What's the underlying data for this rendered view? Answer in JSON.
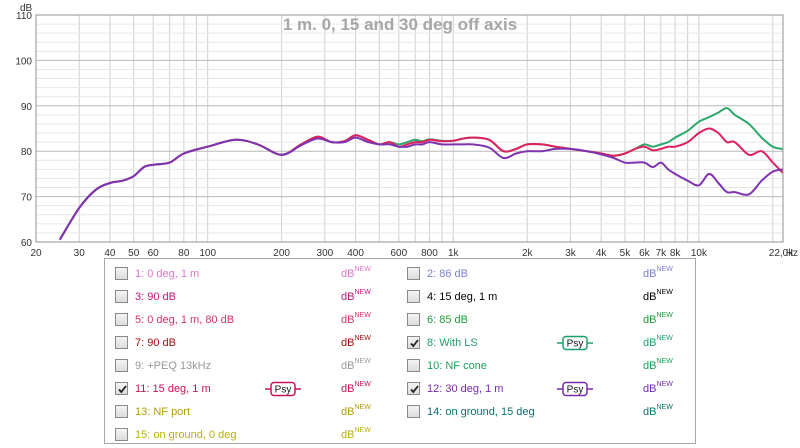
{
  "chart_data": {
    "type": "line",
    "title": "1 m. 0, 15 and 30 deg off axis",
    "xlabel": "Hz",
    "ylabel": "dB",
    "x_scale": "log",
    "xlim": [
      20,
      22000
    ],
    "ylim": [
      60,
      110
    ],
    "grid": true,
    "x_ticks": [
      {
        "v": 20,
        "t": "20"
      },
      {
        "v": 30,
        "t": "30"
      },
      {
        "v": 40,
        "t": "40"
      },
      {
        "v": 50,
        "t": "50"
      },
      {
        "v": 60,
        "t": "60"
      },
      {
        "v": 80,
        "t": "80"
      },
      {
        "v": 100,
        "t": "100"
      },
      {
        "v": 200,
        "t": "200"
      },
      {
        "v": 300,
        "t": "300"
      },
      {
        "v": 400,
        "t": "400"
      },
      {
        "v": 600,
        "t": "600"
      },
      {
        "v": 800,
        "t": "800"
      },
      {
        "v": 1000,
        "t": "1k"
      },
      {
        "v": 2000,
        "t": "2k"
      },
      {
        "v": 3000,
        "t": "3k"
      },
      {
        "v": 4000,
        "t": "4k"
      },
      {
        "v": 5000,
        "t": "5k"
      },
      {
        "v": 6000,
        "t": "6k"
      },
      {
        "v": 7000,
        "t": "7k"
      },
      {
        "v": 8000,
        "t": "8k"
      },
      {
        "v": 10000,
        "t": "10k"
      },
      {
        "v": 22000,
        "t": "22,0k"
      }
    ],
    "y_ticks": [
      60,
      70,
      80,
      90,
      100,
      110
    ],
    "series": [
      {
        "name": "8: With LS",
        "color": "#2ba86a",
        "x": [
          25,
          30,
          35,
          40,
          45,
          50,
          55,
          60,
          70,
          80,
          100,
          130,
          160,
          200,
          240,
          280,
          320,
          360,
          400,
          450,
          500,
          550,
          600,
          650,
          700,
          750,
          800,
          900,
          1000,
          1100,
          1200,
          1400,
          1600,
          1800,
          2000,
          2300,
          2600,
          3000,
          3500,
          4000,
          4500,
          5000,
          5500,
          6000,
          6500,
          7000,
          7500,
          8000,
          9000,
          10000,
          11000,
          12000,
          13000,
          14000,
          16000,
          18000,
          20000,
          22000
        ],
        "y": [
          60.5,
          67.5,
          71.5,
          73,
          73.5,
          74.5,
          76.5,
          77,
          77.5,
          79.5,
          81,
          82.5,
          81.5,
          79.2,
          81.5,
          83.2,
          82,
          82.2,
          83.5,
          82.5,
          81.5,
          82,
          81.5,
          82,
          82.5,
          82.2,
          82.6,
          82.3,
          82.3,
          82.8,
          83,
          82.5,
          80,
          80.5,
          81.5,
          81.5,
          81,
          80.5,
          80,
          79.5,
          79,
          79.5,
          80.5,
          81.5,
          81,
          81.5,
          82,
          83,
          84.5,
          86.5,
          87.5,
          88.5,
          89.5,
          88,
          86,
          83,
          81,
          80.5
        ]
      },
      {
        "name": "11: 15 deg, 1 m",
        "color": "#e0205c",
        "x": [
          25,
          30,
          35,
          40,
          45,
          50,
          55,
          60,
          70,
          80,
          100,
          130,
          160,
          200,
          240,
          280,
          320,
          360,
          400,
          450,
          500,
          550,
          600,
          650,
          700,
          750,
          800,
          900,
          1000,
          1100,
          1200,
          1400,
          1600,
          1800,
          2000,
          2300,
          2600,
          3000,
          3500,
          4000,
          4500,
          5000,
          5500,
          6000,
          6500,
          7000,
          7500,
          8000,
          9000,
          10000,
          11000,
          12000,
          13000,
          14000,
          16000,
          18000,
          20000,
          22000
        ],
        "y": [
          60.5,
          67.5,
          71.5,
          73,
          73.5,
          74.5,
          76.5,
          77,
          77.5,
          79.5,
          81,
          82.5,
          81.5,
          79.2,
          81.5,
          83.2,
          82,
          82.2,
          83.5,
          82.5,
          81.5,
          82,
          81,
          81.5,
          82,
          82,
          82.5,
          82.2,
          82.3,
          82.8,
          83,
          82.5,
          80,
          80.5,
          81.5,
          81.5,
          81,
          80.5,
          80,
          79.5,
          79,
          79.5,
          80.5,
          81,
          80.2,
          80.5,
          81,
          81,
          82,
          84,
          85,
          84,
          82,
          82,
          79.2,
          80,
          77.5,
          75.2
        ]
      },
      {
        "name": "12: 30 deg, 1 m",
        "color": "#7e33b0",
        "x": [
          25,
          30,
          35,
          40,
          45,
          50,
          55,
          60,
          70,
          80,
          100,
          130,
          160,
          200,
          240,
          280,
          320,
          360,
          400,
          450,
          500,
          550,
          600,
          650,
          700,
          750,
          800,
          900,
          1000,
          1100,
          1200,
          1400,
          1600,
          1800,
          2000,
          2300,
          2600,
          3000,
          3500,
          4000,
          4500,
          5000,
          5500,
          6000,
          6500,
          7000,
          7500,
          8000,
          9000,
          10000,
          11000,
          12000,
          13000,
          14000,
          16000,
          18000,
          20000,
          22000
        ],
        "y": [
          60.5,
          67.5,
          71.5,
          73,
          73.5,
          74.5,
          76.5,
          77,
          77.5,
          79.5,
          81,
          82.5,
          81.5,
          79.2,
          81.3,
          82.8,
          82,
          82,
          83,
          82,
          81.5,
          81.5,
          81,
          81,
          81.5,
          81.5,
          82,
          81.5,
          81.5,
          81.5,
          81.5,
          80.8,
          78.5,
          79.5,
          80,
          80,
          80.5,
          80.5,
          80,
          79.3,
          78.5,
          77.5,
          77.5,
          77.5,
          76.5,
          77.5,
          76,
          75,
          73.5,
          72.5,
          75,
          73,
          71,
          71,
          70.5,
          73.5,
          75.5,
          76
        ]
      }
    ]
  },
  "legend": {
    "items": [
      {
        "label": "1: 0 deg, 1 m",
        "db": "dB",
        "sup": "NEW",
        "checked": false,
        "color": "#dd77c8",
        "dbcolor": "#dd77c8",
        "psy": false
      },
      {
        "label": "2: 86 dB",
        "db": "dB",
        "sup": "NEW",
        "checked": false,
        "color": "#7d7fd0",
        "dbcolor": "#7d7fd0",
        "psy": false
      },
      {
        "label": "3: 90 dB",
        "db": "dB",
        "sup": "NEW",
        "checked": false,
        "color": "#c2177c",
        "dbcolor": "#c2177c",
        "psy": false
      },
      {
        "label": "4: 15 deg, 1 m",
        "db": "dB",
        "sup": "NEW",
        "checked": false,
        "color": "#000000",
        "dbcolor": "#000000",
        "psy": false
      },
      {
        "label": "5: 0 deg, 1 m, 80 dB",
        "db": "dB",
        "sup": "NEW",
        "checked": false,
        "color": "#d8336a",
        "dbcolor": "#d8336a",
        "psy": false
      },
      {
        "label": "6: 85 dB",
        "db": "dB",
        "sup": "NEW",
        "checked": false,
        "color": "#1e9e3a",
        "dbcolor": "#1e9e3a",
        "psy": false
      },
      {
        "label": "7: 90 dB",
        "db": "dB",
        "sup": "NEW",
        "checked": false,
        "color": "#a01010",
        "dbcolor": "#a01010",
        "psy": false
      },
      {
        "label": "8: With LS",
        "db": "dB",
        "sup": "NEW",
        "checked": true,
        "color": "#1f9e6a",
        "dbcolor": "#1f9e6a",
        "psy": true,
        "psycolor": "#1f9e6a"
      },
      {
        "label": "9: +PEQ 13kHz",
        "db": "dB",
        "sup": "NEW",
        "checked": false,
        "color": "#999999",
        "dbcolor": "#999999",
        "psy": false
      },
      {
        "label": "10: NF cone",
        "db": "dB",
        "sup": "NEW",
        "checked": false,
        "color": "#1aa05a",
        "dbcolor": "#1aa05a",
        "psy": false
      },
      {
        "label": "11: 15 deg, 1 m",
        "db": "dB",
        "sup": "NEW",
        "checked": true,
        "color": "#c8125c",
        "dbcolor": "#c8125c",
        "psy": true,
        "psycolor": "#c8125c"
      },
      {
        "label": "12: 30 deg, 1 m",
        "db": "dB",
        "sup": "NEW",
        "checked": true,
        "color": "#7a2aa8",
        "dbcolor": "#7a2aa8",
        "psy": true,
        "psycolor": "#7a2aa8"
      },
      {
        "label": "13: NF port",
        "db": "dB",
        "sup": "NEW",
        "checked": false,
        "color": "#b09a10",
        "dbcolor": "#b09a10",
        "psy": false
      },
      {
        "label": "14: on ground, 15 deg",
        "db": "dB",
        "sup": "NEW",
        "checked": false,
        "color": "#0f6f6f",
        "dbcolor": "#0f6f6f",
        "psy": false
      },
      {
        "label": "15: on ground, 0 deg",
        "db": "dB",
        "sup": "NEW",
        "checked": false,
        "color": "#b8ae10",
        "dbcolor": "#b8ae10",
        "psy": false
      }
    ],
    "psy_label": "Psy"
  }
}
